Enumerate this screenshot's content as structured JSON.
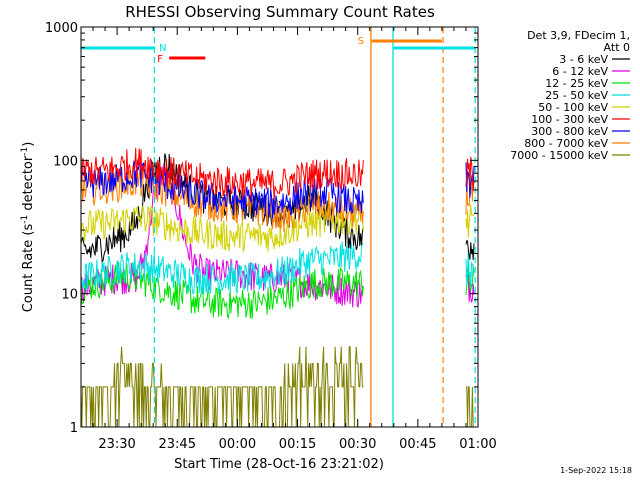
{
  "chart_data": {
    "type": "line",
    "title": "RHESSI Observing Summary Count Rates",
    "xlabel": "Start Time (28-Oct-16 23:21:02)",
    "ylabel_main": "Count Rate (s",
    "ylabel_sup1": "-1",
    "ylabel_mid": " detector",
    "ylabel_sup2": "-1",
    "ylabel_end": ")",
    "y_scale": "log",
    "ylim": [
      1,
      1000
    ],
    "xlim_minutes_after_2321": [
      0,
      99
    ],
    "x_ticks": [
      {
        "label": "23:30",
        "min": 9
      },
      {
        "label": "23:45",
        "min": 24
      },
      {
        "label": "00:00",
        "min": 39
      },
      {
        "label": "00:15",
        "min": 54
      },
      {
        "label": "00:30",
        "min": 69
      },
      {
        "label": "00:45",
        "min": 84
      },
      {
        "label": "01:00",
        "min": 99
      }
    ],
    "y_ticks": [
      {
        "label": "1",
        "value": 1
      },
      {
        "label": "10",
        "value": 10
      },
      {
        "label": "100",
        "value": 100
      },
      {
        "label": "1000",
        "value": 1000
      }
    ],
    "legend_header": [
      "Det 3,9, FDecim 1,",
      "Att 0"
    ],
    "legend_position": "top-right",
    "series": [
      {
        "name": "3 - 6 keV",
        "color": "#000000",
        "points": [
          [
            0,
            20
          ],
          [
            4,
            22
          ],
          [
            8,
            25
          ],
          [
            11,
            28
          ],
          [
            14,
            35
          ],
          [
            16,
            60
          ],
          [
            18,
            80
          ],
          [
            20,
            96
          ],
          [
            22,
            90
          ],
          [
            24,
            80
          ],
          [
            26,
            65
          ],
          [
            29,
            55
          ],
          [
            32,
            50
          ],
          [
            35,
            48
          ],
          [
            38,
            47
          ],
          [
            41,
            46
          ],
          [
            44,
            44
          ],
          [
            47,
            42
          ],
          [
            50,
            40
          ],
          [
            52,
            37
          ],
          [
            54,
            42
          ],
          [
            56,
            50
          ],
          [
            58,
            50
          ],
          [
            60,
            46
          ],
          [
            62,
            38
          ],
          [
            64,
            33
          ],
          [
            66,
            29
          ],
          [
            70,
            26
          ]
        ]
      },
      {
        "name": "6 - 12 keV",
        "color": "#e100e1",
        "points": [
          [
            0,
            11
          ],
          [
            4,
            12
          ],
          [
            8,
            13
          ],
          [
            11,
            13
          ],
          [
            14,
            13
          ],
          [
            16,
            20
          ],
          [
            18,
            50
          ],
          [
            20,
            80
          ],
          [
            22,
            70
          ],
          [
            24,
            45
          ],
          [
            26,
            25
          ],
          [
            28,
            17
          ],
          [
            31,
            14
          ],
          [
            35,
            14
          ],
          [
            40,
            14
          ],
          [
            45,
            13
          ],
          [
            50,
            13
          ],
          [
            53,
            13
          ],
          [
            56,
            12
          ],
          [
            59,
            11.5
          ],
          [
            62,
            11
          ],
          [
            66,
            10.5
          ],
          [
            70,
            10
          ]
        ]
      },
      {
        "name": "12 - 25 keV",
        "color": "#00e100",
        "points": [
          [
            0,
            11
          ],
          [
            4,
            12
          ],
          [
            8,
            13
          ],
          [
            11,
            14
          ],
          [
            14,
            13
          ],
          [
            17,
            12
          ],
          [
            20,
            11
          ],
          [
            24,
            10
          ],
          [
            28,
            9
          ],
          [
            32,
            8.5
          ],
          [
            36,
            8.5
          ],
          [
            40,
            8.5
          ],
          [
            44,
            8.5
          ],
          [
            48,
            9
          ],
          [
            52,
            10
          ],
          [
            55,
            11
          ],
          [
            58,
            12
          ],
          [
            62,
            12
          ],
          [
            66,
            12
          ],
          [
            70,
            12
          ]
        ]
      },
      {
        "name": "25 - 50 keV",
        "color": "#00e1e1",
        "points": [
          [
            0,
            13
          ],
          [
            4,
            14
          ],
          [
            8,
            15
          ],
          [
            11,
            16
          ],
          [
            14,
            16
          ],
          [
            17,
            16
          ],
          [
            20,
            15
          ],
          [
            24,
            14
          ],
          [
            28,
            13
          ],
          [
            32,
            13
          ],
          [
            36,
            13
          ],
          [
            40,
            13
          ],
          [
            44,
            13
          ],
          [
            48,
            14
          ],
          [
            52,
            15
          ],
          [
            55,
            17
          ],
          [
            58,
            18
          ],
          [
            62,
            18
          ],
          [
            66,
            19
          ],
          [
            70,
            20
          ]
        ]
      },
      {
        "name": "50 - 100 keV",
        "color": "#d2d200",
        "points": [
          [
            0,
            32
          ],
          [
            4,
            33
          ],
          [
            8,
            34
          ],
          [
            11,
            36
          ],
          [
            14,
            37
          ],
          [
            17,
            36
          ],
          [
            20,
            34
          ],
          [
            24,
            31
          ],
          [
            28,
            29
          ],
          [
            32,
            28
          ],
          [
            36,
            27
          ],
          [
            40,
            27
          ],
          [
            44,
            27
          ],
          [
            48,
            27
          ],
          [
            52,
            30
          ],
          [
            55,
            33
          ],
          [
            58,
            34
          ],
          [
            62,
            35
          ],
          [
            66,
            36
          ],
          [
            70,
            37
          ]
        ]
      },
      {
        "name": "100 - 300 keV",
        "color": "#ff0000",
        "points": [
          [
            0,
            84
          ],
          [
            4,
            82
          ],
          [
            8,
            86
          ],
          [
            11,
            92
          ],
          [
            14,
            97
          ],
          [
            17,
            93
          ],
          [
            20,
            86
          ],
          [
            24,
            79
          ],
          [
            28,
            74
          ],
          [
            32,
            71
          ],
          [
            36,
            69
          ],
          [
            40,
            68
          ],
          [
            44,
            67
          ],
          [
            48,
            66
          ],
          [
            52,
            69
          ],
          [
            55,
            75
          ],
          [
            58,
            79
          ],
          [
            62,
            81
          ],
          [
            66,
            79
          ],
          [
            70,
            77
          ]
        ]
      },
      {
        "name": "300 - 800 keV",
        "color": "#0000ff",
        "points": [
          [
            0,
            70
          ],
          [
            4,
            68
          ],
          [
            8,
            71
          ],
          [
            11,
            75
          ],
          [
            14,
            79
          ],
          [
            17,
            75
          ],
          [
            20,
            68
          ],
          [
            24,
            61
          ],
          [
            28,
            56
          ],
          [
            32,
            53
          ],
          [
            36,
            51
          ],
          [
            40,
            50
          ],
          [
            44,
            49
          ],
          [
            48,
            47
          ],
          [
            52,
            50
          ],
          [
            55,
            56
          ],
          [
            58,
            59
          ],
          [
            62,
            57
          ],
          [
            66,
            50
          ],
          [
            70,
            46
          ]
        ]
      },
      {
        "name": "800 - 7000 keV",
        "color": "#ff7f00",
        "points": [
          [
            0,
            62
          ],
          [
            4,
            61
          ],
          [
            8,
            63
          ],
          [
            11,
            66
          ],
          [
            14,
            69
          ],
          [
            17,
            66
          ],
          [
            20,
            61
          ],
          [
            24,
            54
          ],
          [
            28,
            49
          ],
          [
            32,
            46
          ],
          [
            36,
            44
          ],
          [
            40,
            43
          ],
          [
            44,
            42
          ],
          [
            48,
            40
          ],
          [
            52,
            37
          ],
          [
            55,
            43
          ],
          [
            58,
            46
          ],
          [
            62,
            44
          ],
          [
            66,
            41
          ],
          [
            70,
            39
          ]
        ]
      },
      {
        "name": "7000 - 15000 keV",
        "color": "#7f7f00",
        "points": [
          [
            0,
            1.5
          ],
          [
            4,
            1.5
          ],
          [
            8,
            1.8
          ],
          [
            11,
            2.4
          ],
          [
            14,
            2.7
          ],
          [
            17,
            2.5
          ],
          [
            20,
            2.0
          ],
          [
            24,
            1.5
          ],
          [
            28,
            1.4
          ],
          [
            32,
            1.3
          ],
          [
            36,
            1.3
          ],
          [
            40,
            1.3
          ],
          [
            44,
            1.3
          ],
          [
            48,
            1.4
          ],
          [
            52,
            2.0
          ],
          [
            55,
            2.5
          ],
          [
            58,
            2.6
          ],
          [
            62,
            2.5
          ],
          [
            66,
            2.5
          ],
          [
            70,
            2.3
          ]
        ]
      }
    ],
    "post_gap_levels": [
      {
        "series": "100 - 300 keV",
        "value": 78
      },
      {
        "series": "300 - 800 keV",
        "value": 70
      },
      {
        "series": "800 - 7000 keV",
        "value": 55
      },
      {
        "series": "50 - 100 keV",
        "value": 33
      },
      {
        "series": "3 - 6 keV",
        "value": 24
      },
      {
        "series": "25 - 50 keV",
        "value": 15
      },
      {
        "series": "12 - 25 keV",
        "value": 12
      },
      {
        "series": "6 - 12 keV",
        "value": 12
      },
      {
        "series": "7000 - 15000 keV",
        "value": 1.6
      }
    ],
    "data_gap_minutes": [
      70.5,
      96
    ],
    "post_gap_minutes": [
      96,
      98.2
    ],
    "annotations": {
      "night_label": "N",
      "flare_label": "F",
      "saa_label": "S",
      "night_color": "#00e1e1",
      "flare_color": "#ff0000",
      "saa_color": "#ff7f00",
      "night_intervals": [
        [
          0,
          18.5
        ],
        [
          78,
          98.2
        ]
      ],
      "flare_interval": [
        22,
        31
      ],
      "saa_interval": [
        72.5,
        90
      ],
      "solid_lines": [
        {
          "min": 72.3,
          "color": "#ff7f00"
        },
        {
          "min": 77.8,
          "color": "#00e1e1"
        }
      ],
      "dashed_lines": [
        {
          "min": 18.3,
          "color": "#00e1e1"
        },
        {
          "min": 90.3,
          "color": "#ff7f00"
        },
        {
          "min": 98.3,
          "color": "#00e1e1"
        }
      ]
    },
    "timestamp": "1-Sep-2022 15:18"
  }
}
